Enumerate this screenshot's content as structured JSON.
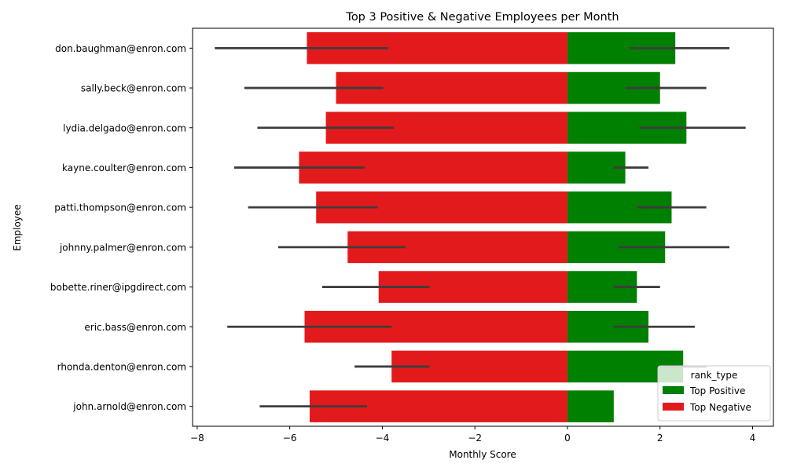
{
  "chart_data": {
    "type": "bar",
    "orientation": "horizontal",
    "title": "Top 3 Positive & Negative Employees per Month",
    "xlabel": "Monthly Score",
    "ylabel": "Employee",
    "xlim": [
      -8.1,
      4.45
    ],
    "xticks": [
      -8,
      -6,
      -4,
      -2,
      0,
      2,
      4
    ],
    "xtick_labels": [
      "−8",
      "−6",
      "−4",
      "−2",
      "0",
      "2",
      "4"
    ],
    "grid": false,
    "legend_position": "lower-right",
    "legend_title": "rank_type",
    "categories": [
      "don.baughman@enron.com",
      "sally.beck@enron.com",
      "lydia.delgado@enron.com",
      "kayne.coulter@enron.com",
      "patti.thompson@enron.com",
      "johnny.palmer@enron.com",
      "bobette.riner@ipgdirect.com",
      "eric.bass@enron.com",
      "rhonda.denton@enron.com",
      "john.arnold@enron.com"
    ],
    "series": [
      {
        "name": "Top Positive",
        "color": "#008000",
        "values": [
          2.33,
          2.0,
          2.57,
          1.25,
          2.25,
          2.11,
          1.5,
          1.75,
          2.5,
          1.0
        ],
        "error_low": [
          1.35,
          1.25,
          1.55,
          1.0,
          1.5,
          1.1,
          1.0,
          1.0,
          2.0,
          null
        ],
        "error_high": [
          3.5,
          3.0,
          3.85,
          1.75,
          3.0,
          3.5,
          2.0,
          2.75,
          3.0,
          null
        ]
      },
      {
        "name": "Top Negative",
        "color": "#e31a1c",
        "values": [
          -5.63,
          -5.0,
          -5.22,
          -5.8,
          -5.43,
          -4.75,
          -4.08,
          -5.68,
          -3.8,
          -5.57
        ],
        "error_low": [
          -7.62,
          -6.98,
          -6.7,
          -7.2,
          -6.9,
          -6.25,
          -5.3,
          -7.35,
          -4.6,
          -6.65
        ],
        "error_high": [
          -3.87,
          -3.98,
          -3.75,
          -4.38,
          -4.1,
          -3.5,
          -2.98,
          -3.8,
          -2.98,
          -4.33
        ]
      }
    ]
  }
}
